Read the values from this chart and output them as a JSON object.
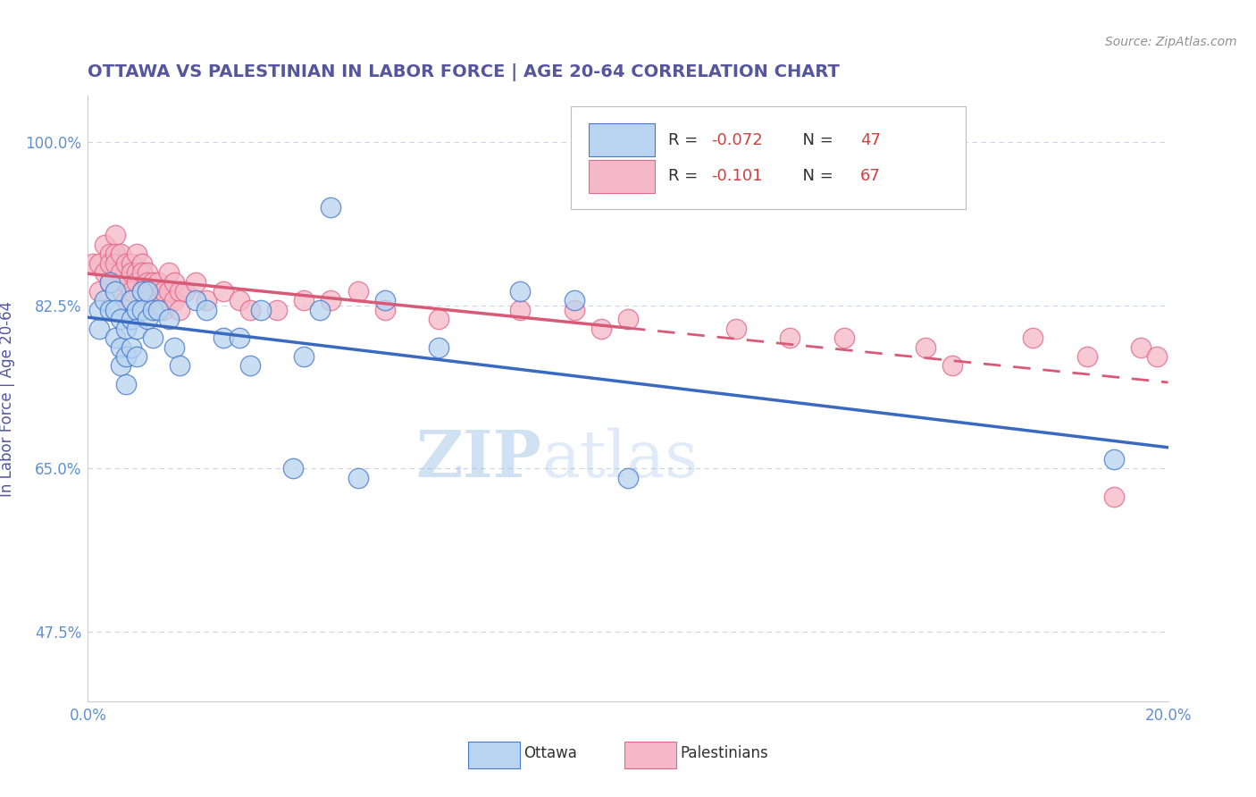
{
  "title": "OTTAWA VS PALESTINIAN IN LABOR FORCE | AGE 20-64 CORRELATION CHART",
  "source_text": "Source: ZipAtlas.com",
  "ylabel": "In Labor Force | Age 20-64",
  "xlim": [
    0.0,
    0.2
  ],
  "ylim": [
    0.4,
    1.05
  ],
  "xticks": [
    0.0,
    0.025,
    0.05,
    0.075,
    0.1,
    0.125,
    0.15,
    0.175,
    0.2
  ],
  "xticklabels": [
    "0.0%",
    "",
    "",
    "",
    "",
    "",
    "",
    "",
    "20.0%"
  ],
  "yticks": [
    0.475,
    0.65,
    0.825,
    1.0
  ],
  "yticklabels": [
    "47.5%",
    "65.0%",
    "82.5%",
    "100.0%"
  ],
  "watermark_zip": "ZIP",
  "watermark_atlas": "atlas",
  "legend_r_ottawa": "-0.072",
  "legend_n_ottawa": "47",
  "legend_r_palest": "-0.101",
  "legend_n_palest": "67",
  "ottawa_fill": "#b8d4f0",
  "palest_fill": "#f4b8c8",
  "ottawa_edge": "#4878c8",
  "palest_edge": "#e06888",
  "ottawa_line_color": "#3a6abf",
  "palest_line_color": "#d85a78",
  "title_color": "#5555a0",
  "axis_label_color": "#5555a0",
  "tick_label_color": "#6090d0",
  "grid_color": "#c8d4e8",
  "source_color": "#909090",
  "legend_text_color": "#303030",
  "legend_value_color": "#d04040",
  "background_color": "#ffffff",
  "ottawa_scatter_x": [
    0.002,
    0.002,
    0.003,
    0.004,
    0.004,
    0.005,
    0.005,
    0.005,
    0.006,
    0.006,
    0.006,
    0.007,
    0.007,
    0.007,
    0.008,
    0.008,
    0.008,
    0.009,
    0.009,
    0.009,
    0.01,
    0.01,
    0.011,
    0.011,
    0.012,
    0.012,
    0.013,
    0.015,
    0.016,
    0.017,
    0.02,
    0.022,
    0.025,
    0.028,
    0.03,
    0.032,
    0.038,
    0.04,
    0.043,
    0.045,
    0.05,
    0.055,
    0.065,
    0.08,
    0.09,
    0.1,
    0.19
  ],
  "ottawa_scatter_y": [
    0.82,
    0.8,
    0.83,
    0.85,
    0.82,
    0.84,
    0.82,
    0.79,
    0.81,
    0.78,
    0.76,
    0.8,
    0.77,
    0.74,
    0.83,
    0.81,
    0.78,
    0.82,
    0.8,
    0.77,
    0.84,
    0.82,
    0.84,
    0.81,
    0.82,
    0.79,
    0.82,
    0.81,
    0.78,
    0.76,
    0.83,
    0.82,
    0.79,
    0.79,
    0.76,
    0.82,
    0.65,
    0.77,
    0.82,
    0.93,
    0.64,
    0.83,
    0.78,
    0.84,
    0.83,
    0.64,
    0.66
  ],
  "palest_scatter_x": [
    0.001,
    0.002,
    0.002,
    0.003,
    0.003,
    0.004,
    0.004,
    0.004,
    0.005,
    0.005,
    0.005,
    0.005,
    0.006,
    0.006,
    0.007,
    0.007,
    0.007,
    0.008,
    0.008,
    0.008,
    0.009,
    0.009,
    0.009,
    0.01,
    0.01,
    0.01,
    0.011,
    0.011,
    0.011,
    0.012,
    0.012,
    0.013,
    0.013,
    0.014,
    0.014,
    0.015,
    0.015,
    0.016,
    0.016,
    0.017,
    0.017,
    0.018,
    0.02,
    0.022,
    0.025,
    0.028,
    0.03,
    0.035,
    0.04,
    0.045,
    0.05,
    0.055,
    0.065,
    0.08,
    0.09,
    0.095,
    0.1,
    0.12,
    0.13,
    0.14,
    0.155,
    0.16,
    0.175,
    0.185,
    0.19,
    0.195,
    0.198
  ],
  "palest_scatter_y": [
    0.87,
    0.87,
    0.84,
    0.89,
    0.86,
    0.88,
    0.87,
    0.85,
    0.9,
    0.88,
    0.87,
    0.84,
    0.88,
    0.86,
    0.87,
    0.85,
    0.83,
    0.87,
    0.86,
    0.84,
    0.88,
    0.86,
    0.85,
    0.87,
    0.86,
    0.84,
    0.86,
    0.85,
    0.83,
    0.85,
    0.84,
    0.85,
    0.83,
    0.84,
    0.82,
    0.86,
    0.84,
    0.85,
    0.83,
    0.84,
    0.82,
    0.84,
    0.85,
    0.83,
    0.84,
    0.83,
    0.82,
    0.82,
    0.83,
    0.83,
    0.84,
    0.82,
    0.81,
    0.82,
    0.82,
    0.8,
    0.81,
    0.8,
    0.79,
    0.79,
    0.78,
    0.76,
    0.79,
    0.77,
    0.62,
    0.78,
    0.77
  ]
}
